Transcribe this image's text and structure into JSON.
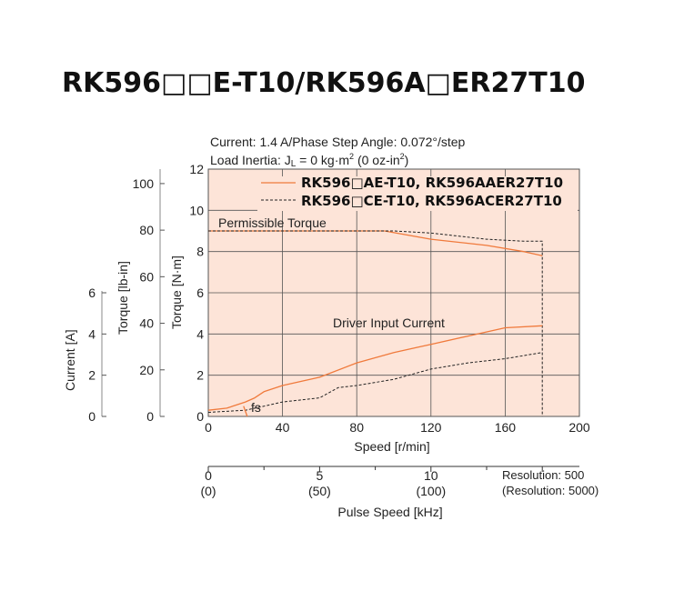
{
  "title": "RK596□□E-T10/RK596A□ER27T10",
  "conditions": {
    "line1": "Current: 1.4 A/Phase   Step Angle: 0.072°/step",
    "line2_prefix": "Load Inertia: J",
    "line2_sub": "L",
    "line2_mid": " = 0 kg·m",
    "line2_sup1": "2",
    "line2_mid2": " (0 oz-in",
    "line2_sup2": "2",
    "line2_end": ")"
  },
  "colors": {
    "plot_bg": "#fde4d8",
    "grid": "#555555",
    "series_orange": "#f07a3c",
    "series_black": "#222222"
  },
  "chart_data": {
    "type": "line",
    "x_axis": {
      "label": "Speed [r/min]",
      "range": [
        0,
        200
      ],
      "ticks": [
        0,
        40,
        80,
        120,
        160,
        200
      ]
    },
    "y_axis_torque_nm": {
      "label": "Torque [N·m]",
      "range": [
        0,
        12
      ],
      "ticks": [
        0,
        2,
        4,
        6,
        8,
        10,
        12
      ]
    },
    "y_axis_torque_lbin": {
      "label": "Torque [lb-in]",
      "ticks": [
        0,
        20,
        40,
        60,
        80,
        100
      ]
    },
    "y_axis_current": {
      "label": "Current [A]",
      "ticks": [
        0,
        2,
        4,
        6
      ]
    },
    "pulse_axis": {
      "label": "Pulse Speed [kHz]",
      "ticks": [
        {
          "value": "0",
          "alt": "(0)"
        },
        {
          "value": "5",
          "alt": "(50)"
        },
        {
          "value": "10",
          "alt": "(100)"
        }
      ],
      "resolution_note1": "Resolution: 500",
      "resolution_note2": "(Resolution: 5000)"
    },
    "legend": {
      "series1_a": "RK596□AE-T10",
      "series1_b": "RK596AAER27T10",
      "series2_a": "RK596□CE-T10",
      "series2_b": "RK596ACER27T10",
      "sep": ", "
    },
    "annotations": {
      "permissible": "Permissible Torque",
      "driver_current": "Driver Input Current",
      "fs": "fs"
    },
    "series": [
      {
        "name": "RK596□AE-T10, RK596AAER27T10",
        "x": [
          0,
          80,
          95,
          120,
          150,
          170,
          180
        ],
        "y": [
          9.0,
          9.0,
          9.0,
          8.6,
          8.3,
          8.0,
          7.8
        ]
      },
      {
        "name": "RK596□CE-T10, RK596ACER27T10",
        "x": [
          0,
          80,
          100,
          120,
          150,
          170,
          180,
          180
        ],
        "y": [
          9.0,
          9.0,
          9.0,
          8.9,
          8.6,
          8.5,
          8.5,
          0
        ]
      },
      {
        "name": "Driver Input Current (□AE)",
        "x": [
          0,
          10,
          20,
          25,
          30,
          40,
          60,
          80,
          100,
          120,
          140,
          160,
          180
        ],
        "y": [
          0.3,
          0.4,
          0.7,
          0.9,
          1.2,
          1.5,
          1.9,
          2.6,
          3.1,
          3.5,
          3.9,
          4.3,
          4.4
        ]
      },
      {
        "name": "Driver Input Current (□CE)",
        "x": [
          0,
          20,
          30,
          40,
          60,
          70,
          80,
          100,
          120,
          140,
          160,
          180
        ],
        "y": [
          0.2,
          0.3,
          0.5,
          0.7,
          0.9,
          1.4,
          1.5,
          1.8,
          2.3,
          2.6,
          2.8,
          3.1
        ]
      },
      {
        "name": "fs",
        "x": [
          19,
          21
        ],
        "y": [
          0.5,
          0.0
        ]
      }
    ]
  }
}
